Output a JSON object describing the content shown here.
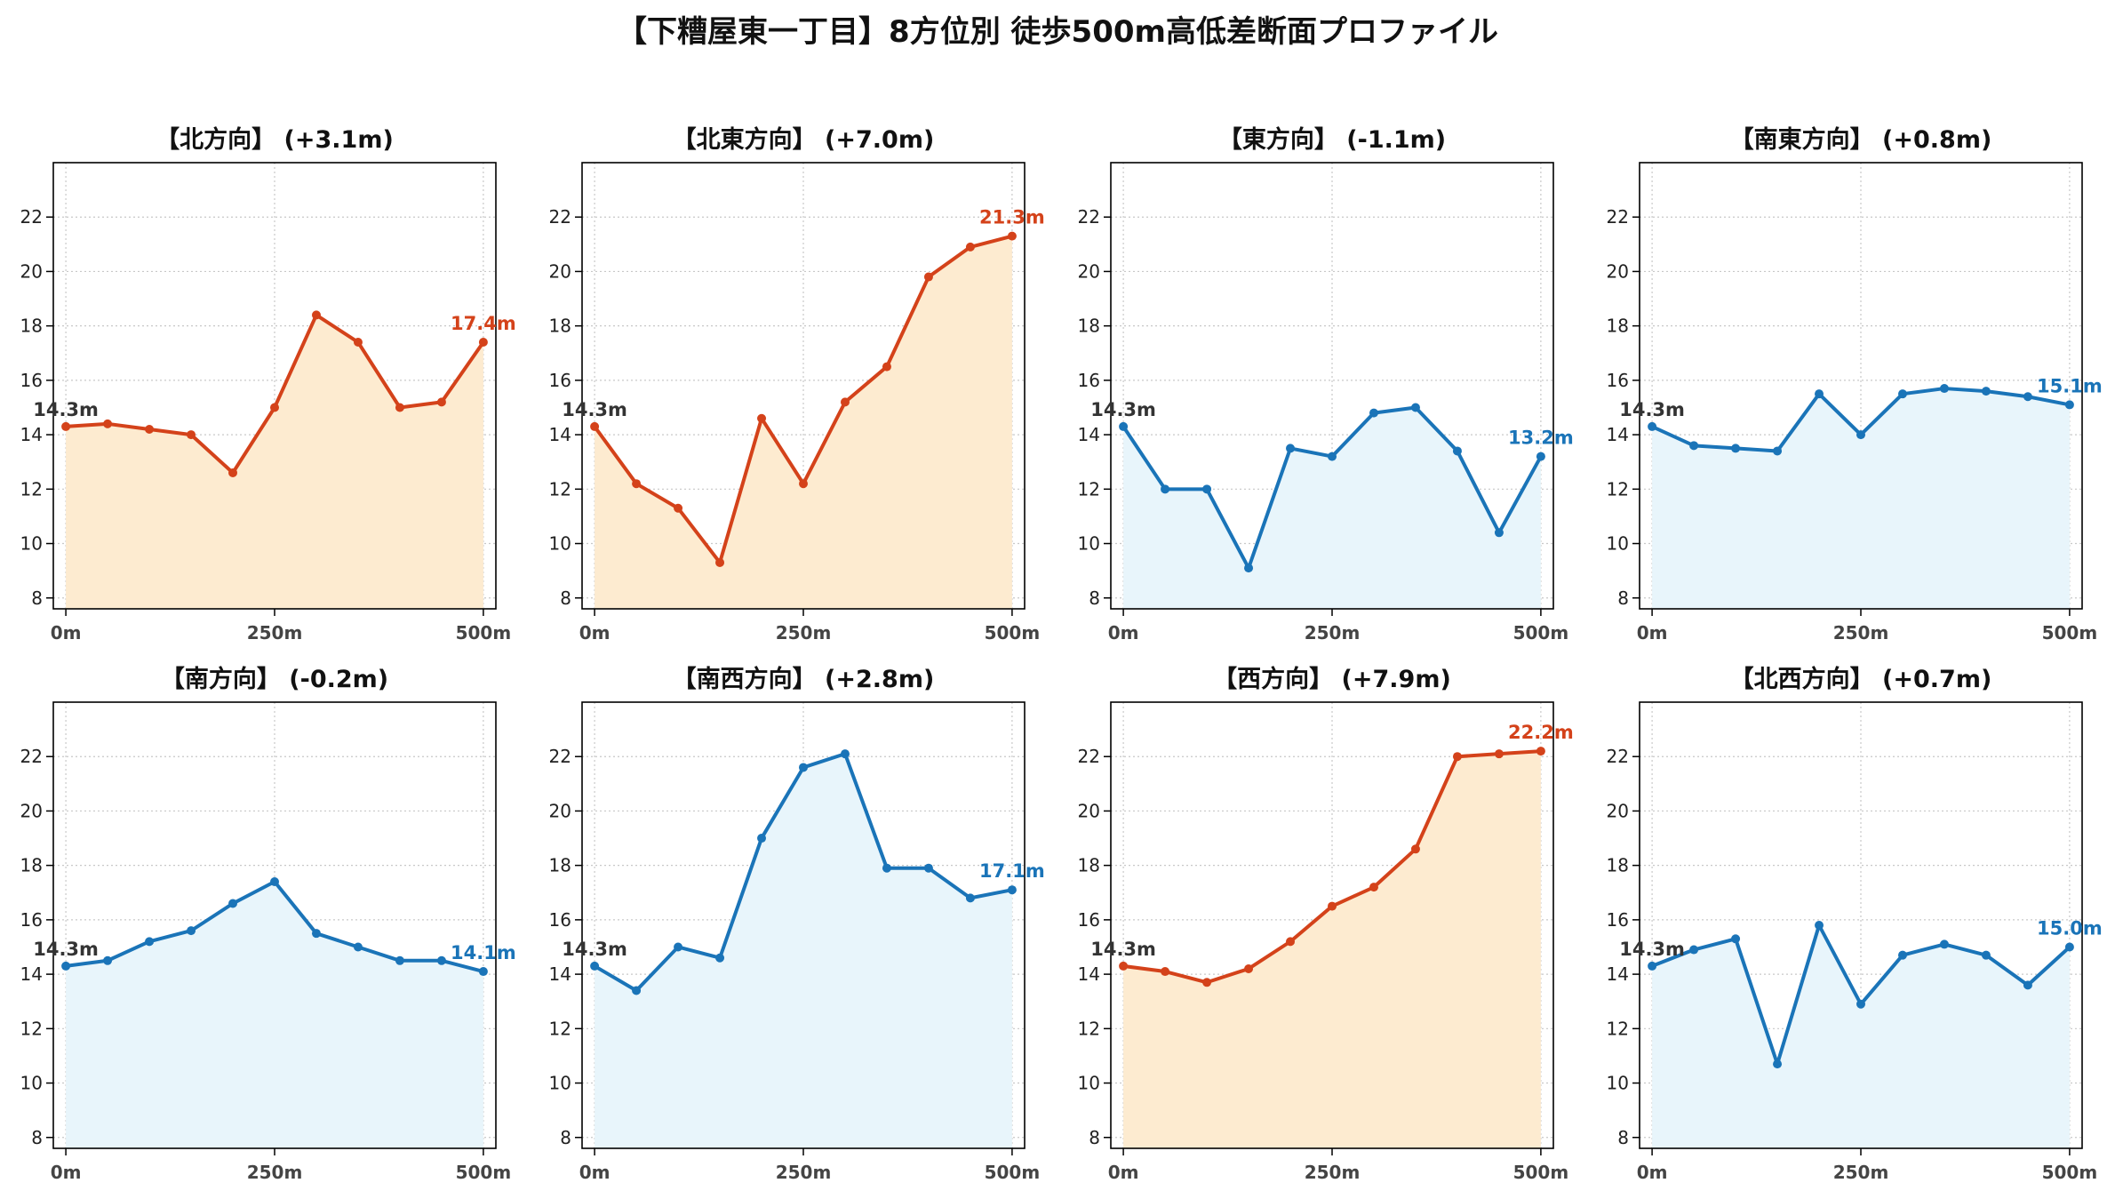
{
  "title": "【下糟屋東一丁目】8方位別 徒歩500m高低差断面プロファイル",
  "colors": {
    "up": "#d4421a",
    "up_fill": "#fdebd0",
    "down": "#1a74b8",
    "down_fill": "#e8f5fb",
    "start_label": "#333333"
  },
  "chart_data": [
    {
      "type": "area",
      "title": "【北方向】 (+3.1m)",
      "trend": "up",
      "start_label": "14.3m",
      "end_label": "17.4m",
      "x": [
        0,
        50,
        100,
        150,
        200,
        250,
        300,
        350,
        400,
        450,
        500
      ],
      "y": [
        14.3,
        14.4,
        14.2,
        14.0,
        12.6,
        15.0,
        18.4,
        17.4,
        15.0,
        15.2,
        17.4
      ],
      "xticks": [
        "0m",
        "250m",
        "500m"
      ],
      "yticks": [
        8,
        10,
        12,
        14,
        16,
        18,
        20,
        22
      ],
      "ylim": [
        7.6,
        24.0
      ],
      "xlim": [
        -15,
        515
      ],
      "grid": true
    },
    {
      "type": "area",
      "title": "【北東方向】 (+7.0m)",
      "trend": "up",
      "start_label": "14.3m",
      "end_label": "21.3m",
      "x": [
        0,
        50,
        100,
        150,
        200,
        250,
        300,
        350,
        400,
        450,
        500
      ],
      "y": [
        14.3,
        12.2,
        11.3,
        9.3,
        14.6,
        12.2,
        15.2,
        16.5,
        19.8,
        20.9,
        21.3
      ],
      "xticks": [
        "0m",
        "250m",
        "500m"
      ],
      "yticks": [
        8,
        10,
        12,
        14,
        16,
        18,
        20,
        22
      ],
      "ylim": [
        7.6,
        24.0
      ],
      "xlim": [
        -15,
        515
      ],
      "grid": true
    },
    {
      "type": "area",
      "title": "【東方向】 (-1.1m)",
      "trend": "down",
      "start_label": "14.3m",
      "end_label": "13.2m",
      "x": [
        0,
        50,
        100,
        150,
        200,
        250,
        300,
        350,
        400,
        450,
        500
      ],
      "y": [
        14.3,
        12.0,
        12.0,
        9.1,
        13.5,
        13.2,
        14.8,
        15.0,
        13.4,
        10.4,
        13.2
      ],
      "xticks": [
        "0m",
        "250m",
        "500m"
      ],
      "yticks": [
        8,
        10,
        12,
        14,
        16,
        18,
        20,
        22
      ],
      "ylim": [
        7.6,
        24.0
      ],
      "xlim": [
        -15,
        515
      ],
      "grid": true
    },
    {
      "type": "area",
      "title": "【南東方向】 (+0.8m)",
      "trend": "down",
      "start_label": "14.3m",
      "end_label": "15.1m",
      "x": [
        0,
        50,
        100,
        150,
        200,
        250,
        300,
        350,
        400,
        450,
        500
      ],
      "y": [
        14.3,
        13.6,
        13.5,
        13.4,
        15.5,
        14.0,
        15.5,
        15.7,
        15.6,
        15.4,
        15.1
      ],
      "xticks": [
        "0m",
        "250m",
        "500m"
      ],
      "yticks": [
        8,
        10,
        12,
        14,
        16,
        18,
        20,
        22
      ],
      "ylim": [
        7.6,
        24.0
      ],
      "xlim": [
        -15,
        515
      ],
      "grid": true
    },
    {
      "type": "area",
      "title": "【南方向】 (-0.2m)",
      "trend": "down",
      "start_label": "14.3m",
      "end_label": "14.1m",
      "x": [
        0,
        50,
        100,
        150,
        200,
        250,
        300,
        350,
        400,
        450,
        500
      ],
      "y": [
        14.3,
        14.5,
        15.2,
        15.6,
        16.6,
        17.4,
        15.5,
        15.0,
        14.5,
        14.5,
        14.1
      ],
      "xticks": [
        "0m",
        "250m",
        "500m"
      ],
      "yticks": [
        8,
        10,
        12,
        14,
        16,
        18,
        20,
        22
      ],
      "ylim": [
        7.6,
        24.0
      ],
      "xlim": [
        -15,
        515
      ],
      "grid": true
    },
    {
      "type": "area",
      "title": "【南西方向】 (+2.8m)",
      "trend": "down",
      "start_label": "14.3m",
      "end_label": "17.1m",
      "x": [
        0,
        50,
        100,
        150,
        200,
        250,
        300,
        350,
        400,
        450,
        500
      ],
      "y": [
        14.3,
        13.4,
        15.0,
        14.6,
        19.0,
        21.6,
        22.1,
        17.9,
        17.9,
        16.8,
        17.1
      ],
      "xticks": [
        "0m",
        "250m",
        "500m"
      ],
      "yticks": [
        8,
        10,
        12,
        14,
        16,
        18,
        20,
        22
      ],
      "ylim": [
        7.6,
        24.0
      ],
      "xlim": [
        -15,
        515
      ],
      "grid": true
    },
    {
      "type": "area",
      "title": "【西方向】 (+7.9m)",
      "trend": "up",
      "start_label": "14.3m",
      "end_label": "22.2m",
      "x": [
        0,
        50,
        100,
        150,
        200,
        250,
        300,
        350,
        400,
        450,
        500
      ],
      "y": [
        14.3,
        14.1,
        13.7,
        14.2,
        15.2,
        16.5,
        17.2,
        18.6,
        22.0,
        22.1,
        22.2
      ],
      "xticks": [
        "0m",
        "250m",
        "500m"
      ],
      "yticks": [
        8,
        10,
        12,
        14,
        16,
        18,
        20,
        22
      ],
      "ylim": [
        7.6,
        24.0
      ],
      "xlim": [
        -15,
        515
      ],
      "grid": true
    },
    {
      "type": "area",
      "title": "【北西方向】 (+0.7m)",
      "trend": "down",
      "start_label": "14.3m",
      "end_label": "15.0m",
      "x": [
        0,
        50,
        100,
        150,
        200,
        250,
        300,
        350,
        400,
        450,
        500
      ],
      "y": [
        14.3,
        14.9,
        15.3,
        10.7,
        15.8,
        12.9,
        14.7,
        15.1,
        14.7,
        13.6,
        15.0
      ],
      "xticks": [
        "0m",
        "250m",
        "500m"
      ],
      "yticks": [
        8,
        10,
        12,
        14,
        16,
        18,
        20,
        22
      ],
      "ylim": [
        7.6,
        24.0
      ],
      "xlim": [
        -15,
        515
      ],
      "grid": true
    }
  ]
}
